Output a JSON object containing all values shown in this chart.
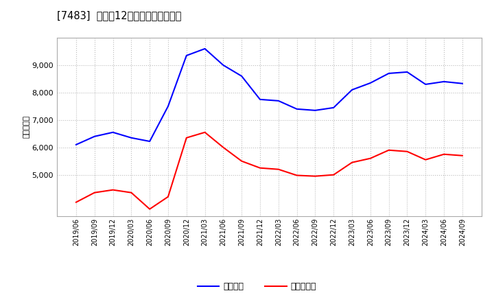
{
  "title": "[7483]  利益だ12か月移動合計の推移",
  "ylabel": "（百万円）",
  "legend_labels": [
    "経常利益",
    "当期純利益"
  ],
  "line_colors": [
    "#0000ff",
    "#ff0000"
  ],
  "background_color": "#ffffff",
  "plot_bg_color": "#ffffff",
  "grid_color": "#bbbbbb",
  "ylim": [
    3500,
    10000
  ],
  "yticks": [
    5000,
    6000,
    7000,
    8000,
    9000
  ],
  "dates": [
    "2019/06",
    "2019/09",
    "2019/12",
    "2020/03",
    "2020/06",
    "2020/09",
    "2020/12",
    "2021/03",
    "2021/06",
    "2021/09",
    "2021/12",
    "2022/03",
    "2022/06",
    "2022/09",
    "2022/12",
    "2023/03",
    "2023/06",
    "2023/09",
    "2023/12",
    "2024/03",
    "2024/06",
    "2024/09"
  ],
  "keijo_rieki": [
    6100,
    6400,
    6550,
    6350,
    6220,
    7500,
    9350,
    9600,
    9000,
    8600,
    7750,
    7700,
    7400,
    7350,
    7450,
    8100,
    8350,
    8700,
    8750,
    8300,
    8400,
    8330
  ],
  "junrieki": [
    4000,
    4350,
    4450,
    4350,
    3750,
    4200,
    6350,
    6550,
    6000,
    5500,
    5250,
    5200,
    4980,
    4950,
    5000,
    5450,
    5600,
    5900,
    5850,
    5550,
    5750,
    5700
  ]
}
